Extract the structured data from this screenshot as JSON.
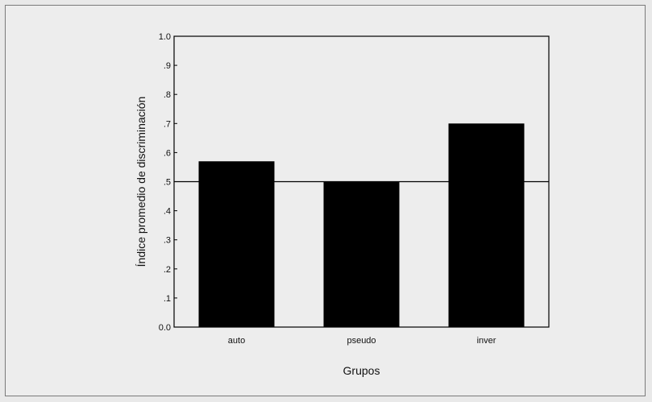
{
  "chart_data": {
    "type": "bar",
    "categories": [
      "auto",
      "pseudo",
      "inver"
    ],
    "values": [
      0.57,
      0.5,
      0.7
    ],
    "xlabel": "Grupos",
    "ylabel": "Índice promedio de discriminación",
    "ylim": [
      0,
      1.0
    ],
    "yticks": [
      {
        "value": 0.0,
        "label": "0.0"
      },
      {
        "value": 0.1,
        "label": ".1"
      },
      {
        "value": 0.2,
        "label": ".2"
      },
      {
        "value": 0.3,
        "label": ".3"
      },
      {
        "value": 0.4,
        "label": ".4"
      },
      {
        "value": 0.5,
        "label": ".5"
      },
      {
        "value": 0.6,
        "label": ".6"
      },
      {
        "value": 0.7,
        "label": ".7"
      },
      {
        "value": 0.8,
        "label": ".8"
      },
      {
        "value": 0.9,
        "label": ".9"
      },
      {
        "value": 1.0,
        "label": "1.0"
      }
    ],
    "reference_line": 0.5,
    "grid": false,
    "bar_color": "#000000",
    "background_color": "#ededed"
  }
}
